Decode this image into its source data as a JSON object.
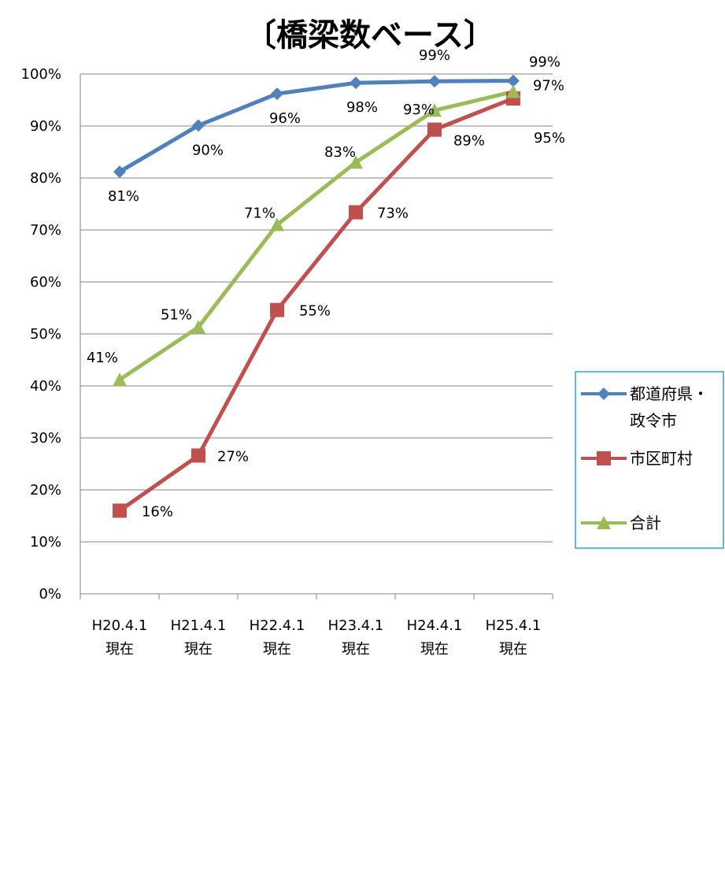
{
  "chart_data": {
    "type": "line",
    "title": "〔橋梁数ベース〕",
    "xlabel": "",
    "ylabel": "",
    "categories": [
      [
        "H20.4.1",
        "現在"
      ],
      [
        "H21.4.1",
        "現在"
      ],
      [
        "H22.4.1",
        "現在"
      ],
      [
        "H23.4.1",
        "現在"
      ],
      [
        "H24.4.1",
        "現在"
      ],
      [
        "H25.4.1",
        "現在"
      ]
    ],
    "ylim": [
      0,
      100
    ],
    "yticks": [
      "0%",
      "10%",
      "20%",
      "30%",
      "40%",
      "50%",
      "60%",
      "70%",
      "80%",
      "90%",
      "100%"
    ],
    "grid": true,
    "legend_position": "right",
    "series": [
      {
        "name": [
          "都道府県・",
          "政令市"
        ],
        "color": "#4F81BD",
        "marker": "diamond",
        "values": [
          81.2,
          90.1,
          96.2,
          98.3,
          98.6,
          98.7
        ],
        "labels": [
          "81%",
          "90%",
          "96%",
          "98%",
          "99%",
          "99%"
        ]
      },
      {
        "name": [
          "市区町村"
        ],
        "color": "#C0504D",
        "marker": "square",
        "values": [
          16.0,
          26.6,
          54.6,
          73.4,
          89.3,
          95.3
        ],
        "labels": [
          "16%",
          "27%",
          "55%",
          "73%",
          "89%",
          "95%"
        ]
      },
      {
        "name": [
          "合計"
        ],
        "color": "#9BBB59",
        "marker": "triangle",
        "values": [
          41.2,
          51.3,
          71.0,
          83.0,
          93.0,
          96.6
        ],
        "labels": [
          "41%",
          "51%",
          "71%",
          "83%",
          "93%",
          "97%"
        ]
      }
    ]
  }
}
